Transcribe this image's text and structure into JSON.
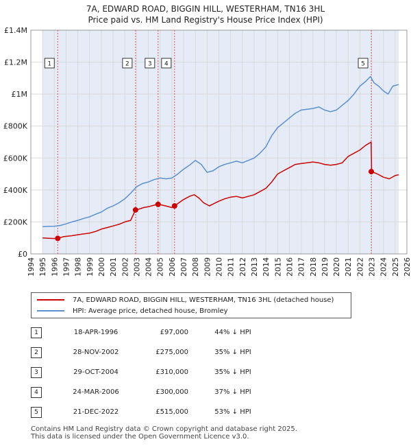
{
  "title": {
    "line1": "7A, EDWARD ROAD, BIGGIN HILL, WESTERHAM, TN16 3HL",
    "line2": "Price paid vs. HM Land Registry's House Price Index (HPI)"
  },
  "legend": {
    "property": "7A, EDWARD ROAD, BIGGIN HILL, WESTERHAM, TN16 3HL (detached house)",
    "hpi": "HPI: Average price, detached house, Bromley"
  },
  "colors": {
    "property": "#cc0000",
    "hpi": "#5b8fd0",
    "shade": "#e6ecf7",
    "grid": "#d9d9d9",
    "marker_line": "#e05050"
  },
  "sales": [
    {
      "num": "1",
      "date": "18-APR-1996",
      "price": "£97,000",
      "hpi": "44% ↓ HPI"
    },
    {
      "num": "2",
      "date": "28-NOV-2002",
      "price": "£275,000",
      "hpi": "35% ↓ HPI"
    },
    {
      "num": "3",
      "date": "29-OCT-2004",
      "price": "£310,000",
      "hpi": "35% ↓ HPI"
    },
    {
      "num": "4",
      "date": "24-MAR-2006",
      "price": "£300,000",
      "hpi": "37% ↓ HPI"
    },
    {
      "num": "5",
      "date": "21-DEC-2022",
      "price": "£515,000",
      "hpi": "53% ↓ HPI"
    }
  ],
  "footer": {
    "line1": "Contains HM Land Registry data © Crown copyright and database right 2025.",
    "line2": "This data is licensed under the Open Government Licence v3.0."
  },
  "chart_data": {
    "type": "line",
    "title": "7A, EDWARD ROAD, BIGGIN HILL, WESTERHAM, TN16 3HL",
    "subtitle": "Price paid vs. HM Land Registry's House Price Index (HPI)",
    "xlabel": "",
    "ylabel": "",
    "xlim": [
      1994,
      2026
    ],
    "ylim": [
      0,
      1400000
    ],
    "x_ticks": [
      1994,
      1995,
      1996,
      1997,
      1998,
      1999,
      2000,
      2001,
      2002,
      2003,
      2004,
      2005,
      2006,
      2007,
      2008,
      2009,
      2010,
      2011,
      2012,
      2013,
      2014,
      2015,
      2016,
      2017,
      2018,
      2019,
      2020,
      2021,
      2022,
      2023,
      2024,
      2025,
      2026
    ],
    "y_ticks": [
      {
        "value": 0,
        "label": "£0"
      },
      {
        "value": 200000,
        "label": "£200K"
      },
      {
        "value": 400000,
        "label": "£400K"
      },
      {
        "value": 600000,
        "label": "£600K"
      },
      {
        "value": 800000,
        "label": "£800K"
      },
      {
        "value": 1000000,
        "label": "£1M"
      },
      {
        "value": 1200000,
        "label": "£1.2M"
      },
      {
        "value": 1400000,
        "label": "£1.4M"
      }
    ],
    "grid": true,
    "data_range": [
      1995,
      2025.3
    ],
    "series": [
      {
        "name": "7A, EDWARD ROAD, BIGGIN HILL, WESTERHAM, TN16 3HL (detached house)",
        "color": "#cc0000",
        "x": [
          1995.0,
          1995.5,
          1996.0,
          1996.29,
          1996.8,
          1997.5,
          1998.0,
          1998.5,
          1999.0,
          1999.5,
          2000.0,
          2000.5,
          2001.0,
          2001.5,
          2002.0,
          2002.5,
          2002.9,
          2003.2,
          2003.6,
          2004.0,
          2004.5,
          2004.83,
          2005.2,
          2005.6,
          2006.0,
          2006.23,
          2006.6,
          2007.0,
          2007.5,
          2007.9,
          2008.3,
          2008.7,
          2009.2,
          2009.6,
          2010.0,
          2010.5,
          2011.0,
          2011.5,
          2012.0,
          2012.5,
          2013.0,
          2013.5,
          2014.0,
          2014.5,
          2015.0,
          2015.5,
          2016.0,
          2016.5,
          2017.0,
          2017.5,
          2018.0,
          2018.5,
          2019.0,
          2019.5,
          2020.0,
          2020.5,
          2021.0,
          2021.5,
          2022.0,
          2022.5,
          2022.96,
          2023.0,
          2023.5,
          2024.0,
          2024.5,
          2025.0,
          2025.3
        ],
        "values": [
          100000,
          98000,
          96000,
          97000,
          108000,
          114000,
          120000,
          125000,
          130000,
          140000,
          155000,
          165000,
          175000,
          185000,
          200000,
          210000,
          275000,
          280000,
          290000,
          295000,
          305000,
          310000,
          305000,
          298000,
          290000,
          300000,
          320000,
          340000,
          360000,
          370000,
          350000,
          320000,
          300000,
          315000,
          330000,
          345000,
          355000,
          360000,
          350000,
          360000,
          370000,
          390000,
          410000,
          450000,
          500000,
          520000,
          540000,
          560000,
          565000,
          570000,
          575000,
          570000,
          560000,
          555000,
          560000,
          570000,
          610000,
          630000,
          650000,
          680000,
          700000,
          515000,
          500000,
          480000,
          470000,
          490000,
          495000
        ]
      },
      {
        "name": "HPI: Average price, detached house, Bromley",
        "color": "#5b8fd0",
        "x": [
          1995.0,
          1995.5,
          1996.0,
          1996.5,
          1997.0,
          1997.5,
          1998.0,
          1998.5,
          1999.0,
          1999.5,
          2000.0,
          2000.5,
          2001.0,
          2001.5,
          2002.0,
          2002.5,
          2003.0,
          2003.5,
          2004.0,
          2004.5,
          2005.0,
          2005.5,
          2006.0,
          2006.5,
          2007.0,
          2007.5,
          2008.0,
          2008.5,
          2009.0,
          2009.5,
          2010.0,
          2010.5,
          2011.0,
          2011.5,
          2012.0,
          2012.5,
          2013.0,
          2013.5,
          2014.0,
          2014.5,
          2015.0,
          2015.5,
          2016.0,
          2016.5,
          2017.0,
          2017.5,
          2018.0,
          2018.5,
          2019.0,
          2019.5,
          2020.0,
          2020.5,
          2021.0,
          2021.5,
          2022.0,
          2022.5,
          2022.9,
          2023.2,
          2023.6,
          2024.0,
          2024.4,
          2024.8,
          2025.3
        ],
        "values": [
          170000,
          172000,
          173000,
          178000,
          188000,
          200000,
          210000,
          222000,
          232000,
          248000,
          262000,
          285000,
          300000,
          320000,
          345000,
          380000,
          420000,
          440000,
          450000,
          465000,
          475000,
          470000,
          475000,
          500000,
          530000,
          555000,
          585000,
          560000,
          510000,
          520000,
          545000,
          560000,
          570000,
          580000,
          570000,
          585000,
          600000,
          630000,
          670000,
          740000,
          790000,
          820000,
          850000,
          880000,
          900000,
          905000,
          910000,
          920000,
          900000,
          890000,
          900000,
          930000,
          960000,
          1000000,
          1050000,
          1080000,
          1110000,
          1070000,
          1050000,
          1020000,
          1000000,
          1050000,
          1060000
        ]
      }
    ],
    "markers": [
      {
        "label": "1",
        "x": 1996.29,
        "y": 97000
      },
      {
        "label": "2",
        "x": 2002.91,
        "y": 275000
      },
      {
        "label": "3",
        "x": 2004.83,
        "y": 310000
      },
      {
        "label": "4",
        "x": 2006.23,
        "y": 300000
      },
      {
        "label": "5",
        "x": 2022.97,
        "y": 515000
      }
    ]
  }
}
